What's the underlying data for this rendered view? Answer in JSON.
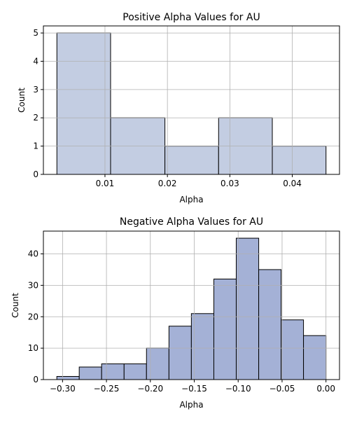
{
  "chart_data": [
    {
      "type": "bar",
      "title": "Positive Alpha Values for AU",
      "xlabel": "Alpha",
      "ylabel": "Count",
      "bins": [
        {
          "start": 0.0023,
          "end": 0.0109,
          "count": 5
        },
        {
          "start": 0.0109,
          "end": 0.0196,
          "count": 2
        },
        {
          "start": 0.0196,
          "end": 0.0282,
          "count": 1
        },
        {
          "start": 0.0282,
          "end": 0.0368,
          "count": 2
        },
        {
          "start": 0.0368,
          "end": 0.0454,
          "count": 1
        }
      ],
      "xlim": [
        0.00014,
        0.04756
      ],
      "ylim": [
        0,
        5.25
      ],
      "xticks": [
        0.01,
        0.02,
        0.03,
        0.04
      ],
      "xtick_labels": [
        "0.01",
        "0.02",
        "0.03",
        "0.04"
      ],
      "yticks": [
        0,
        1,
        2,
        3,
        4,
        5
      ],
      "ytick_labels": [
        "0",
        "1",
        "2",
        "3",
        "4",
        "5"
      ],
      "bar_color": "#c3cde2",
      "grid": true
    },
    {
      "type": "bar",
      "title": "Negative Alpha Values for AU",
      "xlabel": "Alpha",
      "ylabel": "Count",
      "bins": [
        {
          "start": -0.3065,
          "end": -0.281,
          "count": 1
        },
        {
          "start": -0.281,
          "end": -0.2555,
          "count": 4
        },
        {
          "start": -0.2555,
          "end": -0.2299,
          "count": 5
        },
        {
          "start": -0.2299,
          "end": -0.2044,
          "count": 5
        },
        {
          "start": -0.2044,
          "end": -0.1788,
          "count": 10
        },
        {
          "start": -0.1788,
          "end": -0.1533,
          "count": 17
        },
        {
          "start": -0.1533,
          "end": -0.1277,
          "count": 21
        },
        {
          "start": -0.1277,
          "end": -0.1022,
          "count": 32
        },
        {
          "start": -0.1022,
          "end": -0.0766,
          "count": 45
        },
        {
          "start": -0.0766,
          "end": -0.0511,
          "count": 35
        },
        {
          "start": -0.0511,
          "end": -0.0256,
          "count": 19
        },
        {
          "start": -0.0256,
          "end": 0.0,
          "count": 14
        }
      ],
      "xlim": [
        -0.3218,
        0.0154
      ],
      "ylim": [
        0,
        47.25
      ],
      "xticks": [
        -0.3,
        -0.25,
        -0.2,
        -0.15,
        -0.1,
        -0.05,
        0.0
      ],
      "xtick_labels": [
        "−0.30",
        "−0.25",
        "−0.20",
        "−0.15",
        "−0.10",
        "−0.05",
        "0.00"
      ],
      "yticks": [
        0,
        10,
        20,
        30,
        40
      ],
      "ytick_labels": [
        "0",
        "10",
        "20",
        "30",
        "40"
      ],
      "bar_color": "#a4b1d6",
      "grid": true
    }
  ]
}
